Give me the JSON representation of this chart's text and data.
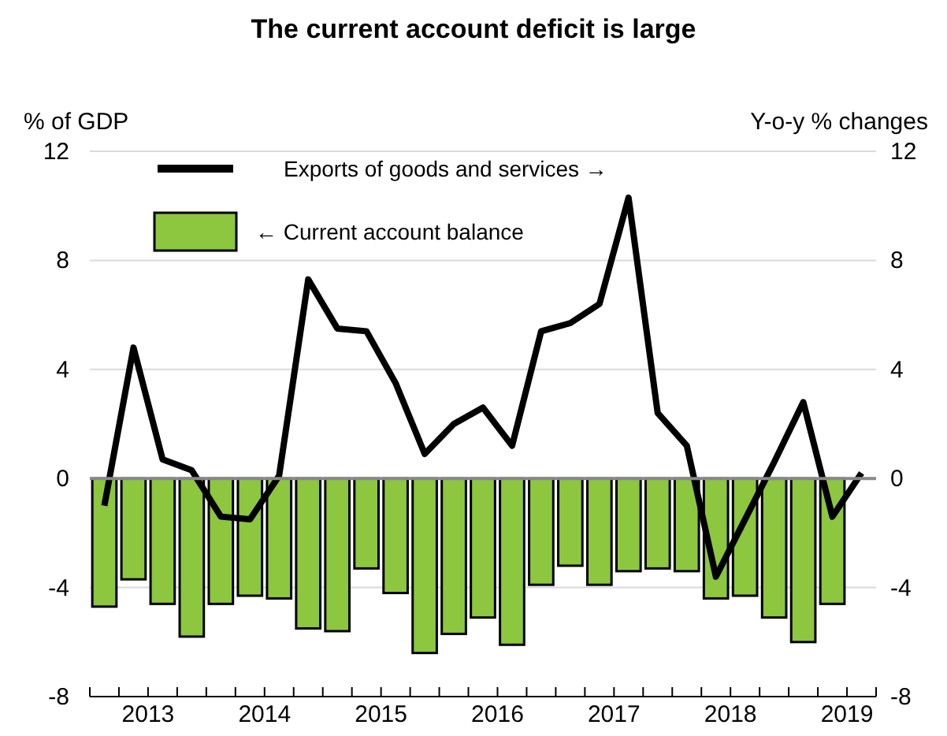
{
  "chart_data": {
    "type": "bar",
    "title": "The current account deficit is large",
    "ylabel": "% of GDP",
    "y2label": "Y-o-y % changes",
    "xlim": [
      2013,
      2019.75
    ],
    "xticks": [
      {
        "value": 2013,
        "label": null
      },
      {
        "value": 2013.25,
        "label": null
      },
      {
        "value": 2013.5,
        "label": "2013"
      },
      {
        "value": 2013.75,
        "label": null
      },
      {
        "value": 2014,
        "label": null
      },
      {
        "value": 2014.25,
        "label": null
      },
      {
        "value": 2014.5,
        "label": "2014"
      },
      {
        "value": 2014.75,
        "label": null
      },
      {
        "value": 2015,
        "label": null
      },
      {
        "value": 2015.25,
        "label": null
      },
      {
        "value": 2015.5,
        "label": "2015"
      },
      {
        "value": 2015.75,
        "label": null
      },
      {
        "value": 2016,
        "label": null
      },
      {
        "value": 2016.25,
        "label": null
      },
      {
        "value": 2016.5,
        "label": "2016"
      },
      {
        "value": 2016.75,
        "label": null
      },
      {
        "value": 2017,
        "label": null
      },
      {
        "value": 2017.25,
        "label": null
      },
      {
        "value": 2017.5,
        "label": "2017"
      },
      {
        "value": 2017.75,
        "label": null
      },
      {
        "value": 2018,
        "label": null
      },
      {
        "value": 2018.25,
        "label": null
      },
      {
        "value": 2018.5,
        "label": "2018"
      },
      {
        "value": 2018.75,
        "label": null
      },
      {
        "value": 2019,
        "label": null
      },
      {
        "value": 2019.25,
        "label": null
      },
      {
        "value": 2019.5,
        "label": "2019"
      },
      {
        "value": 2019.75,
        "label": null
      }
    ],
    "ylim": [
      -8,
      12
    ],
    "yticks": [
      -8,
      -4,
      0,
      4,
      8,
      12
    ],
    "y2lim": [
      -8,
      12
    ],
    "y2ticks": [
      -8,
      -4,
      0,
      4,
      8,
      12
    ],
    "grid": "y",
    "legend": "top left",
    "series": [
      {
        "name": "Exports of goods and services →",
        "type": "line",
        "axis": "y2",
        "color": "#000000",
        "x": [
          2013.125,
          2013.375,
          2013.625,
          2013.875,
          2014.125,
          2014.375,
          2014.625,
          2014.875,
          2015.125,
          2015.375,
          2015.625,
          2015.875,
          2016.125,
          2016.375,
          2016.625,
          2016.875,
          2017.125,
          2017.375,
          2017.625,
          2017.875,
          2018.125,
          2018.375,
          2018.625,
          2018.875,
          2019.125,
          2019.375,
          2019.625
        ],
        "values": [
          -1,
          4.8,
          0.7,
          0.3,
          -1.4,
          -1.5,
          0.1,
          7.3,
          5.5,
          5.4,
          3.5,
          0.9,
          2,
          2.6,
          1.2,
          5.4,
          5.7,
          6.4,
          10.3,
          2.4,
          1.2,
          -3.6,
          -1.5,
          0.6,
          2.8,
          -1.4,
          0.2
        ]
      },
      {
        "name": "← Current account balance",
        "color": "#8dc63f",
        "x": [
          2013.125,
          2013.375,
          2013.625,
          2013.875,
          2014.125,
          2014.375,
          2014.625,
          2014.875,
          2015.125,
          2015.375,
          2015.625,
          2015.875,
          2016.125,
          2016.375,
          2016.625,
          2016.875,
          2017.125,
          2017.375,
          2017.625,
          2017.875,
          2018.125,
          2018.375,
          2018.625,
          2018.875,
          2019.125,
          2019.375
        ],
        "values": [
          -4.7,
          -3.7,
          -4.6,
          -5.8,
          -4.6,
          -4.3,
          -4.4,
          -5.5,
          -5.6,
          -3.3,
          -4.2,
          -6.4,
          -5.7,
          -5.1,
          -6.1,
          -3.9,
          -3.2,
          -3.9,
          -3.4,
          -3.3,
          -3.4,
          -4.4,
          -4.3,
          -5.1,
          -6,
          -4.6
        ]
      }
    ]
  }
}
